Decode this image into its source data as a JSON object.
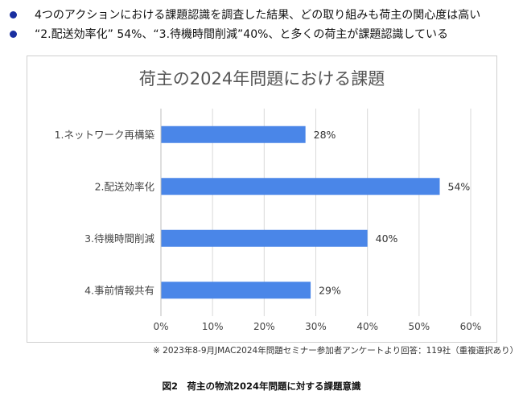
{
  "bullets": [
    "4つのアクションにおける課題認識を調査した結果、どの取り組みも荷主の関心度は高い",
    "“2.配送効率化” 54%、“3.待機時間削減”40%、と多くの荷主が課題認識している"
  ],
  "colors": {
    "bullet": "#1a2fa0",
    "bar": "#4a86e8",
    "axis_text": "#444444",
    "grid": "#d9d9d9"
  },
  "chart_data": {
    "type": "bar",
    "orientation": "horizontal",
    "title": "荷主の2024年問題における課題",
    "categories": [
      "1.ネットワーク再構築",
      "2.配送効率化",
      "3.待機時間削減",
      "4.事前情報共有"
    ],
    "values": [
      28,
      54,
      40,
      29
    ],
    "value_labels": [
      "28%",
      "54%",
      "40%",
      "29%"
    ],
    "xlim": [
      0,
      60
    ],
    "xticks": [
      "0%",
      "10%",
      "20%",
      "30%",
      "40%",
      "50%",
      "60%"
    ],
    "grid": true,
    "legend": "none"
  },
  "footnote": "※ 2023年8-9月JMAC2024年問題セミナー参加者アンケートより回答：119社（重複選択あり）",
  "caption": "図2　荷主の物流2024年問題に対する課題意識"
}
